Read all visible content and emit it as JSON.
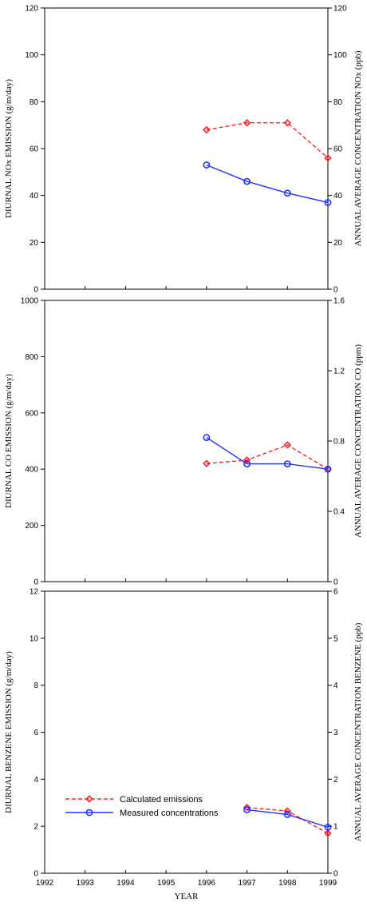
{
  "chart_data": [
    {
      "type": "line",
      "ylabel": "DIURNAL NOx EMISSION (g/m/day)",
      "y2label": "ANNUAL AVERAGE CONCENTRATION NOx (ppb)",
      "xlim": [
        1992,
        1999
      ],
      "ylim": [
        0,
        120
      ],
      "y2lim": [
        0,
        120
      ],
      "yticks": [
        "0",
        "20",
        "40",
        "60",
        "80",
        "100",
        "120"
      ],
      "y2ticks": [
        "0",
        "20",
        "40",
        "60",
        "80",
        "100",
        "120"
      ],
      "series": [
        {
          "name": "Calculated emissions",
          "axis": "left",
          "color": "#ff2020",
          "style": "dashed",
          "marker": "diamond",
          "x": [
            1996,
            1997,
            1998,
            1999
          ],
          "values": [
            68,
            71,
            71,
            56
          ]
        },
        {
          "name": "Measured concentrations",
          "axis": "right",
          "color": "#2030ff",
          "style": "solid",
          "marker": "circle",
          "x": [
            1996,
            1997,
            1998,
            1999
          ],
          "values": [
            53,
            46,
            41,
            37
          ]
        }
      ]
    },
    {
      "type": "line",
      "ylabel": "DIURNAL CO EMISSION (g/m/day)",
      "y2label": "ANNUAL AVERAGE CONCENTRATION CO (ppm)",
      "xlim": [
        1992,
        1999
      ],
      "ylim": [
        0,
        1000
      ],
      "y2lim": [
        0,
        1.6
      ],
      "yticks": [
        "0",
        "200",
        "400",
        "600",
        "800",
        "1000"
      ],
      "y2ticks": [
        "0",
        "0.4",
        "0.8",
        "1.2",
        "1.6"
      ],
      "series": [
        {
          "name": "Calculated emissions",
          "axis": "left",
          "color": "#ff2020",
          "style": "dashed",
          "marker": "diamond",
          "x": [
            1996,
            1997,
            1998,
            1999
          ],
          "values": [
            420,
            432,
            486,
            400
          ]
        },
        {
          "name": "Measured concentrations",
          "axis": "right",
          "color": "#2030ff",
          "style": "solid",
          "marker": "circle",
          "x": [
            1996,
            1997,
            1998,
            1999
          ],
          "values": [
            0.82,
            0.67,
            0.67,
            0.64
          ]
        }
      ]
    },
    {
      "type": "line",
      "ylabel": "DIURNAL BENZENE EMISSION (g/m/day)",
      "y2label": "ANNUAL AVERAGE CONCENTRATION BENZENE (ppb)",
      "xlabel": "YEAR",
      "xlim": [
        1992,
        1999
      ],
      "ylim": [
        0,
        12
      ],
      "y2lim": [
        0,
        6
      ],
      "yticks": [
        "0",
        "2",
        "4",
        "6",
        "8",
        "10",
        "12"
      ],
      "y2ticks": [
        "0",
        "1",
        "2",
        "3",
        "4",
        "5",
        "6"
      ],
      "xticks": [
        "1992",
        "1993",
        "1994",
        "1995",
        "1996",
        "1997",
        "1998",
        "1999"
      ],
      "legend": {
        "placement": "bottom-left",
        "entries": [
          "Calculated emissions",
          "Measured concentrations"
        ]
      },
      "series": [
        {
          "name": "Calculated emissions",
          "axis": "left",
          "color": "#ff2020",
          "style": "dashed",
          "marker": "diamond",
          "x": [
            1997,
            1998,
            1999
          ],
          "values": [
            2.8,
            2.65,
            1.7
          ]
        },
        {
          "name": "Measured concentrations",
          "axis": "right",
          "color": "#2030ff",
          "style": "solid",
          "marker": "circle",
          "x": [
            1997,
            1998,
            1999
          ],
          "values": [
            1.35,
            1.25,
            0.98
          ]
        }
      ]
    }
  ]
}
